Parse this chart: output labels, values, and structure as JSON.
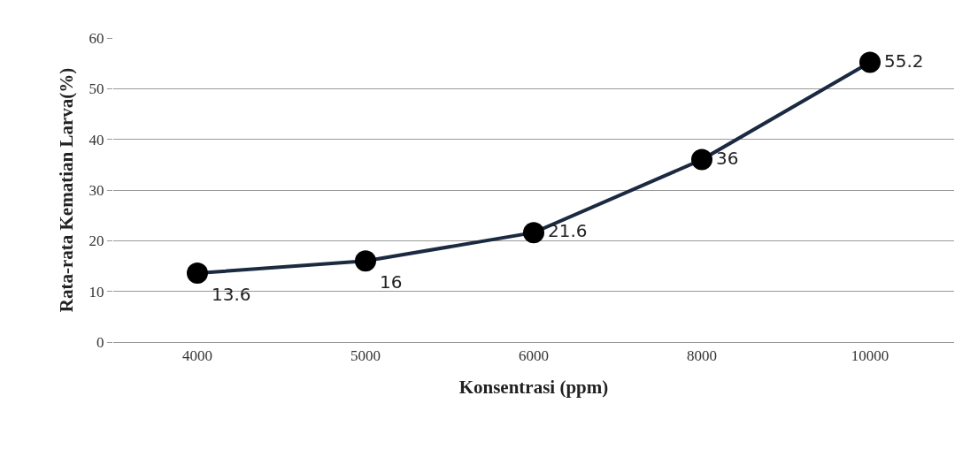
{
  "chart_data": {
    "type": "line",
    "xlabel": "Konsentrasi (ppm)",
    "ylabel": "Rata-rata Kematian Larva(%)",
    "categories": [
      "4000",
      "5000",
      "6000",
      "8000",
      "10000"
    ],
    "series": [
      {
        "color": "#1b2a41",
        "values": [
          13.6,
          16,
          21.6,
          36,
          55.2
        ]
      }
    ],
    "ylim": [
      0,
      60
    ],
    "yticks": [
      0,
      10,
      20,
      30,
      40,
      50,
      60
    ],
    "grid": "y",
    "marker": "circle",
    "line_style": "solid",
    "data_labels": true
  }
}
